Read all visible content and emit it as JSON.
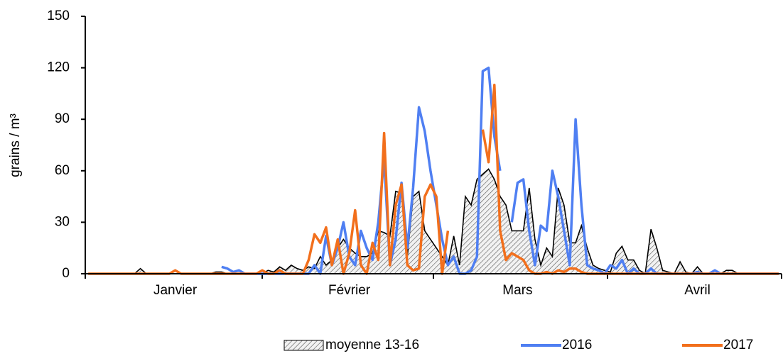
{
  "chart_data": {
    "type": "line",
    "y_label": "grains / m³",
    "categories": [
      null,
      null,
      null,
      null,
      null,
      null,
      null,
      null,
      null,
      null,
      null,
      null,
      null,
      null,
      null,
      "Janvier",
      null,
      null,
      null,
      null,
      null,
      null,
      null,
      null,
      null,
      null,
      null,
      null,
      null,
      null,
      null,
      null,
      null,
      null,
      null,
      null,
      null,
      null,
      null,
      null,
      null,
      null,
      null,
      null,
      null,
      "Février",
      null,
      null,
      null,
      null,
      null,
      null,
      null,
      null,
      null,
      null,
      null,
      null,
      null,
      null,
      null,
      null,
      null,
      null,
      null,
      null,
      null,
      null,
      null,
      null,
      null,
      null,
      null,
      null,
      "Mars",
      null,
      null,
      null,
      null,
      null,
      null,
      null,
      null,
      null,
      null,
      null,
      null,
      null,
      null,
      null,
      null,
      null,
      null,
      null,
      null,
      null,
      null,
      null,
      null,
      null,
      null,
      null,
      null,
      null,
      null,
      "Avril",
      null,
      null,
      null,
      null,
      null,
      null,
      null,
      null,
      null,
      null,
      null,
      null,
      null,
      null
    ],
    "series": [
      {
        "name": "moyenne 13-16",
        "color": "#000000",
        "fill": "hatch",
        "values": [
          0,
          0,
          0,
          0,
          0,
          0,
          0,
          0,
          0,
          3,
          0,
          0,
          0,
          0,
          0,
          0,
          0,
          0,
          0,
          0,
          0,
          0,
          1,
          1,
          0,
          0,
          0,
          0,
          0,
          0,
          0,
          2,
          1,
          4,
          2,
          5,
          3,
          2,
          4,
          3,
          10,
          5,
          8,
          15,
          20,
          15,
          12,
          10,
          10,
          12,
          25,
          24,
          22,
          48,
          47,
          10,
          45,
          48,
          25,
          20,
          15,
          10,
          5,
          22,
          5,
          45,
          40,
          55,
          58,
          61,
          55,
          45,
          40,
          25,
          25,
          25,
          50,
          20,
          5,
          15,
          10,
          50,
          40,
          18,
          18,
          28,
          15,
          5,
          3,
          2,
          1,
          12,
          16,
          8,
          8,
          2,
          0,
          26,
          15,
          2,
          1,
          0,
          7,
          1,
          0,
          4,
          0,
          0,
          0,
          0,
          2,
          2,
          0,
          0,
          0,
          0,
          0,
          0,
          0,
          0
        ]
      },
      {
        "name": "2016",
        "color": "#4f7ff2",
        "values": [
          null,
          null,
          null,
          null,
          null,
          null,
          null,
          null,
          null,
          null,
          null,
          null,
          null,
          null,
          null,
          null,
          null,
          null,
          null,
          null,
          null,
          null,
          null,
          4,
          3,
          1,
          2,
          0,
          0,
          0,
          0,
          0,
          0,
          0,
          0,
          0,
          0,
          0,
          0,
          5,
          0,
          22,
          5,
          15,
          30,
          10,
          5,
          25,
          15,
          8,
          30,
          67,
          5,
          20,
          53,
          15,
          50,
          97,
          83,
          60,
          40,
          20,
          5,
          10,
          0,
          0,
          2,
          10,
          118,
          120,
          80,
          60,
          null,
          30,
          53,
          55,
          25,
          5,
          28,
          25,
          60,
          45,
          25,
          5,
          90,
          40,
          5,
          3,
          2,
          0,
          5,
          3,
          8,
          0,
          3,
          0,
          0,
          3,
          0,
          0,
          0,
          0,
          0,
          0,
          0,
          1,
          0,
          0,
          2,
          0,
          0,
          0,
          0,
          0,
          0,
          0,
          0,
          0,
          0,
          0
        ]
      },
      {
        "name": "2017",
        "color": "#f26f1c",
        "values": [
          0,
          0,
          0,
          0,
          0,
          0,
          0,
          0,
          0,
          0,
          0,
          0,
          0,
          0,
          0,
          2,
          0,
          0,
          0,
          0,
          0,
          0,
          0,
          0,
          0,
          0,
          0,
          0,
          0,
          0,
          2,
          0,
          0,
          2,
          0,
          0,
          0,
          0,
          8,
          23,
          18,
          27,
          5,
          20,
          0,
          12,
          37,
          5,
          0,
          18,
          8,
          82,
          5,
          40,
          52,
          5,
          2,
          3,
          45,
          52,
          45,
          0,
          25,
          null,
          null,
          null,
          null,
          null,
          84,
          65,
          110,
          25,
          8,
          12,
          10,
          8,
          2,
          0,
          0,
          1,
          0,
          2,
          1,
          3,
          3,
          1,
          0,
          0,
          0,
          0,
          0,
          0,
          0,
          0,
          0,
          0,
          0,
          0,
          0,
          0,
          0,
          0,
          0,
          0,
          0,
          0,
          0,
          0,
          0,
          0,
          0,
          0,
          0,
          0,
          0,
          0,
          0,
          0,
          0,
          0
        ]
      }
    ],
    "ylim": [
      0,
      150
    ],
    "yticks": [
      0,
      30,
      60,
      90,
      120,
      150
    ],
    "grid": false
  }
}
